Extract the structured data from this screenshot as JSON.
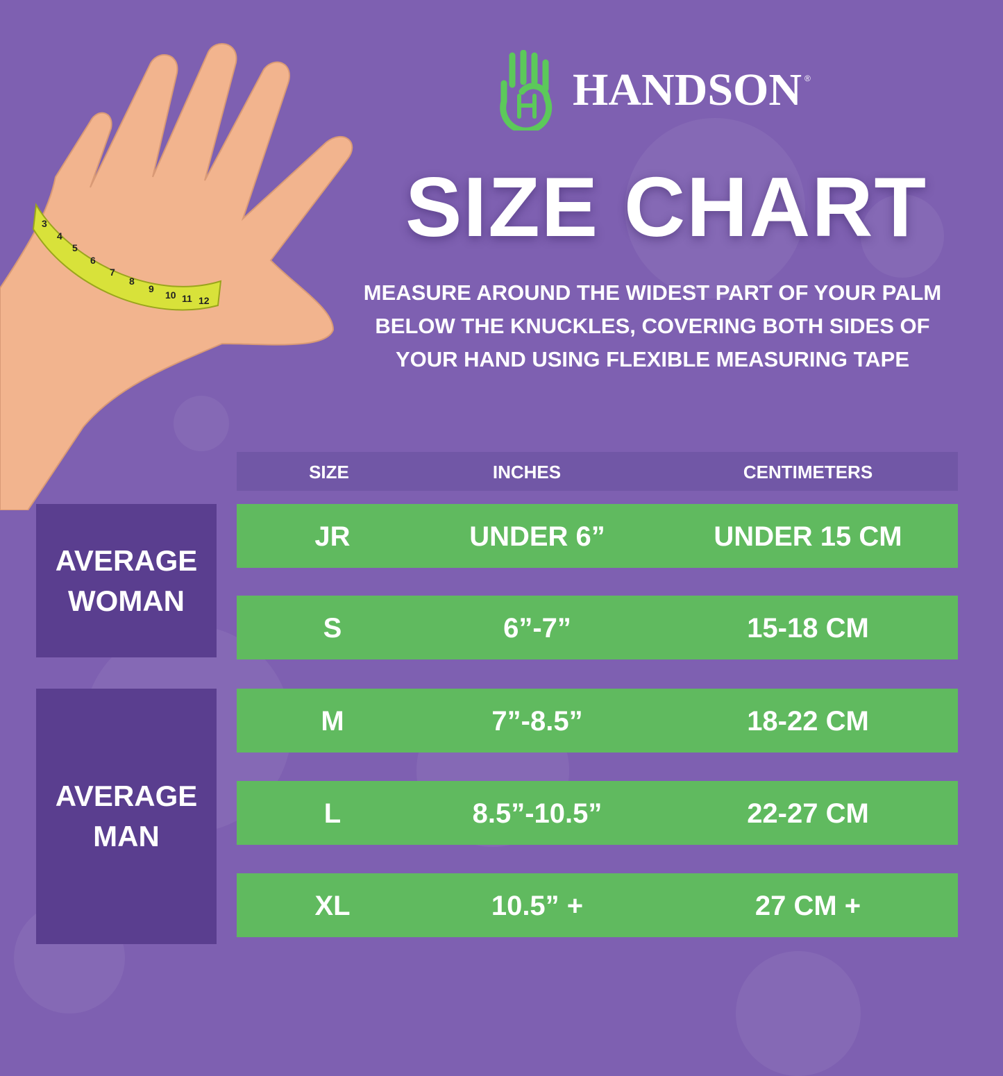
{
  "brand": {
    "name": "HANDSON",
    "registered": "®",
    "logo_icon": "hand-h-logo",
    "logo_color": "#5cc95a"
  },
  "title": "SIZE CHART",
  "instructions": "MEASURE AROUND THE WIDEST PART OF YOUR PALM BELOW THE KNUCKLES, COVERING BOTH SIDES OF YOUR HAND USING FLEXIBLE MEASURING TAPE",
  "colors": {
    "background": "#7e60b1",
    "row": "#60ba5f",
    "group_panel": "#5a3e8f",
    "header": "#7157a6"
  },
  "table": {
    "headers": [
      "SIZE",
      "INCHES",
      "CENTIMETERS"
    ],
    "rows": [
      {
        "size": "JR",
        "inches": "UNDER 6”",
        "cm": "UNDER 15 CM"
      },
      {
        "size": "S",
        "inches": "6”-7”",
        "cm": "15-18 CM"
      },
      {
        "size": "M",
        "inches": "7”-8.5”",
        "cm": "18-22 CM"
      },
      {
        "size": "L",
        "inches": "8.5”-10.5”",
        "cm": "22-27 CM"
      },
      {
        "size": "XL",
        "inches": "10.5” +",
        "cm": "27 CM +"
      }
    ],
    "groups": [
      "AVERAGE WOMAN",
      "AVERAGE MAN"
    ]
  },
  "tape_numbers": [
    "3",
    "4",
    "5",
    "6",
    "7",
    "8",
    "9",
    "10",
    "11",
    "12"
  ]
}
